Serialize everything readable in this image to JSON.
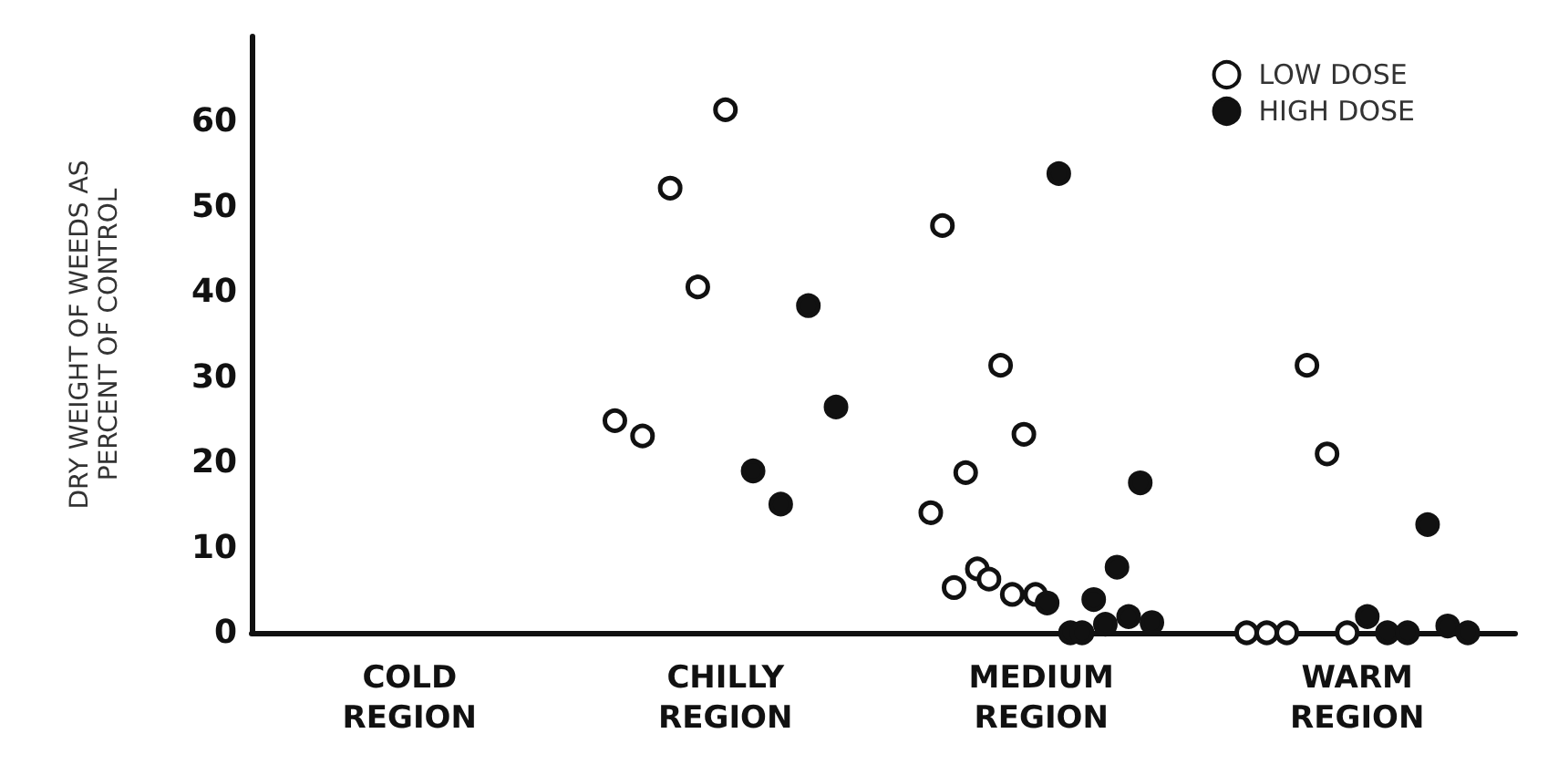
{
  "chart_data": {
    "type": "scatter",
    "ylabel": "DRY WEIGHT OF WEEDS AS\nPERCENT OF CONTROL",
    "categories": [
      "COLD\nREGION",
      "CHILLY\nREGION",
      "MEDIUM\nREGION",
      "WARM\nREGION"
    ],
    "ylim": [
      0,
      70
    ],
    "yticks": [
      0,
      10,
      20,
      30,
      40,
      50,
      60
    ],
    "grid": false,
    "legend": "top right",
    "marker": "circle",
    "series": [
      {
        "name": "LOW DOSE",
        "color": "#ffffff",
        "x": [
          "CHILLY\nREGION",
          "CHILLY\nREGION",
          "CHILLY\nREGION",
          "CHILLY\nREGION",
          "CHILLY\nREGION",
          "MEDIUM\nREGION",
          "MEDIUM\nREGION",
          "MEDIUM\nREGION",
          "MEDIUM\nREGION",
          "MEDIUM\nREGION",
          "MEDIUM\nREGION",
          "MEDIUM\nREGION",
          "MEDIUM\nREGION",
          "MEDIUM\nREGION",
          "MEDIUM\nREGION",
          "WARM\nREGION",
          "WARM\nREGION",
          "WARM\nREGION",
          "WARM\nREGION",
          "WARM\nREGION",
          "WARM\nREGION"
        ],
        "values": [
          24.9,
          23.1,
          52.2,
          40.6,
          61.4,
          14.1,
          47.8,
          5.3,
          18.8,
          7.5,
          6.3,
          31.4,
          4.5,
          23.3,
          4.5,
          0,
          0,
          0,
          31.4,
          21.0,
          0
        ]
      },
      {
        "name": "HIGH DOSE",
        "color": "#111111",
        "x": [
          "CHILLY\nREGION",
          "CHILLY\nREGION",
          "CHILLY\nREGION",
          "CHILLY\nREGION",
          "MEDIUM\nREGION",
          "MEDIUM\nREGION",
          "MEDIUM\nREGION",
          "MEDIUM\nREGION",
          "MEDIUM\nREGION",
          "MEDIUM\nREGION",
          "MEDIUM\nREGION",
          "MEDIUM\nREGION",
          "MEDIUM\nREGION",
          "MEDIUM\nREGION",
          "WARM\nREGION",
          "WARM\nREGION",
          "WARM\nREGION",
          "WARM\nREGION",
          "WARM\nREGION",
          "WARM\nREGION"
        ],
        "values": [
          19,
          15.1,
          38.4,
          26.5,
          3.5,
          53.9,
          0,
          0,
          3.9,
          1.0,
          7.7,
          1.9,
          17.6,
          1.2,
          1.9,
          0,
          0,
          12.7,
          0.8,
          0
        ]
      }
    ]
  }
}
